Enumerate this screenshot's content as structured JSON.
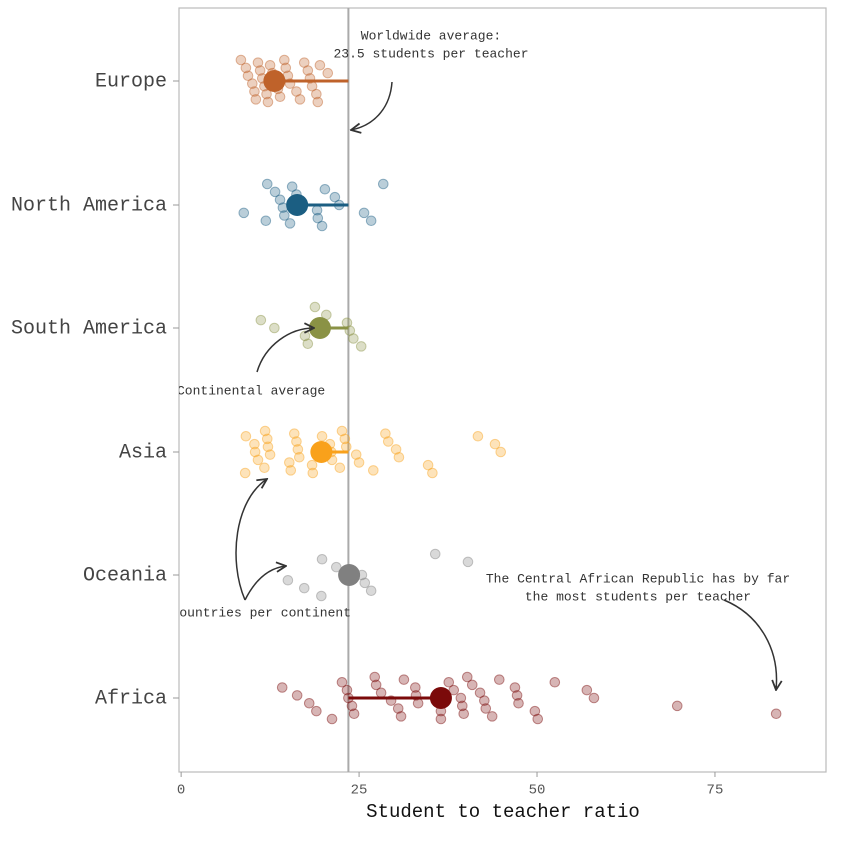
{
  "chart_data": {
    "type": "strip",
    "x_label": "Student to teacher ratio",
    "xlim": [
      -0.3,
      90.6
    ],
    "xticks": [
      0,
      25,
      50,
      75
    ],
    "world_average": 23.5,
    "groups": [
      {
        "category": "Europe",
        "color": "#bf622a",
        "average": 13.1,
        "values": [
          8.4,
          9.1,
          9.4,
          10.0,
          10.3,
          10.5,
          10.8,
          11.1,
          11.4,
          11.7,
          12.0,
          12.2,
          12.5,
          12.8,
          13.4,
          13.6,
          13.9,
          14.5,
          14.7,
          15.0,
          15.3,
          16.2,
          16.7,
          17.3,
          17.8,
          18.1,
          18.4,
          19.0,
          19.2,
          19.5,
          20.6
        ]
      },
      {
        "category": "North America",
        "color": "#1b5e82",
        "average": 16.3,
        "values": [
          8.8,
          11.9,
          12.1,
          13.2,
          13.9,
          14.3,
          14.5,
          15.3,
          15.6,
          16.2,
          16.4,
          19.1,
          19.2,
          19.8,
          20.2,
          21.6,
          22.2,
          25.7,
          26.7,
          28.4
        ]
      },
      {
        "category": "South America",
        "color": "#8a9245",
        "average": 19.5,
        "values": [
          11.2,
          13.1,
          17.4,
          17.8,
          18.8,
          20.4,
          23.3,
          23.7,
          24.2,
          25.3
        ]
      },
      {
        "category": "Asia",
        "color": "#f9a11b",
        "average": 19.7,
        "values": [
          9.0,
          9.1,
          10.3,
          10.4,
          10.8,
          11.7,
          11.8,
          12.1,
          12.2,
          12.5,
          15.2,
          15.4,
          15.9,
          16.2,
          16.4,
          16.6,
          18.4,
          18.5,
          19.8,
          20.9,
          21.1,
          21.2,
          22.3,
          22.6,
          23.0,
          23.2,
          24.6,
          25.0,
          27.0,
          28.7,
          29.1,
          30.2,
          30.6,
          34.7,
          35.3,
          41.7,
          44.1,
          44.9
        ]
      },
      {
        "category": "Oceania",
        "color": "#808080",
        "average": 23.6,
        "values": [
          15.0,
          17.3,
          19.7,
          19.8,
          21.8,
          25.4,
          25.8,
          26.7,
          35.7,
          40.3
        ]
      },
      {
        "category": "Africa",
        "color": "#7b0a0a",
        "average": 36.5,
        "values": [
          14.2,
          16.3,
          18.0,
          19.0,
          21.2,
          22.6,
          23.3,
          23.5,
          24.0,
          24.3,
          27.2,
          27.4,
          28.1,
          29.5,
          30.5,
          30.9,
          31.3,
          32.9,
          33.0,
          33.3,
          36.5,
          36.5,
          37.6,
          38.3,
          39.3,
          39.5,
          39.7,
          40.2,
          40.9,
          42.0,
          42.6,
          42.8,
          43.7,
          44.7,
          46.9,
          47.2,
          47.4,
          49.7,
          50.1,
          52.5,
          57.0,
          58.0,
          69.7,
          83.6
        ]
      }
    ],
    "annotations": [
      {
        "lines": [
          "Worldwide average:",
          "23.5 students per teacher"
        ]
      },
      {
        "lines": [
          "Continental average"
        ]
      },
      {
        "lines": [
          "Countries per continent"
        ]
      },
      {
        "lines": [
          "The Central African Republic has by far",
          "the most students per teacher"
        ]
      }
    ]
  }
}
